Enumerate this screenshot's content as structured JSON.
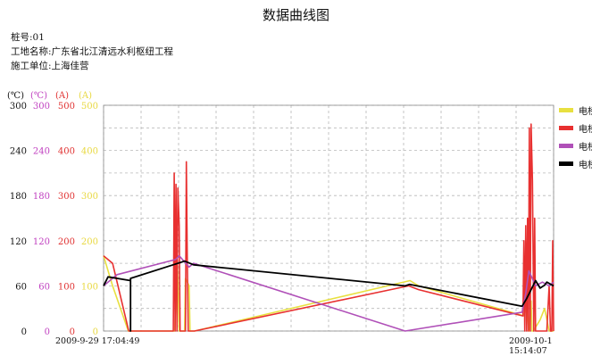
{
  "page_title": "数据曲线图",
  "info": {
    "pile_no": "桩号:01",
    "site_name": "工地名称:广东省北江清远水利枢纽工程",
    "contractor": "施工单位:上海佳营"
  },
  "axes": [
    {
      "unit": "(℃)",
      "color": "#111111",
      "ticks": [
        "300",
        "240",
        "180",
        "120",
        "60",
        "0"
      ]
    },
    {
      "unit": "(℃)",
      "color": "#c040c0",
      "ticks": [
        "300",
        "240",
        "180",
        "120",
        "60",
        "0"
      ]
    },
    {
      "unit": "(A)",
      "color": "#e03030",
      "ticks": [
        "500",
        "400",
        "300",
        "200",
        "100",
        "0"
      ]
    },
    {
      "unit": "(A)",
      "color": "#e8d840",
      "ticks": [
        "500",
        "400",
        "300",
        "200",
        "100",
        "0"
      ]
    }
  ],
  "time_start": "2009-9-29 17:04:49",
  "time_end": "2009-10-1 15:14:07",
  "legend": [
    {
      "label": "电桥",
      "color": "#e8e040"
    },
    {
      "label": "电桥",
      "color": "#e83030"
    },
    {
      "label": "电桥",
      "color": "#b050b8"
    },
    {
      "label": "电桥",
      "color": "#000000"
    }
  ],
  "chart_data": {
    "type": "line",
    "xlabel": "",
    "x_range": [
      "2009-9-29 17:04:49",
      "2009-10-1 15:14:07"
    ],
    "ylim": [
      0,
      300
    ],
    "grid": true,
    "legend_position": "right",
    "series": [
      {
        "color": "#e8e040",
        "x": [
          0,
          0.02,
          0.055,
          0.158,
          0.164,
          0.168,
          0.18,
          0.182,
          0.19,
          0.192,
          0.2,
          0.202,
          0.681,
          0.7,
          0.935,
          0.94,
          0.945,
          0.95,
          0.952,
          0.955,
          0.97,
          0.98,
          0.99,
          0.995,
          1
        ],
        "values": [
          100,
          60,
          0,
          0,
          90,
          0,
          0,
          70,
          60,
          0,
          0,
          0,
          67,
          60,
          20,
          35,
          0,
          40,
          0,
          0,
          15,
          30,
          0,
          0,
          0
        ]
      },
      {
        "color": "#e83030",
        "x": [
          0,
          0.02,
          0.056,
          0.058,
          0.155,
          0.157,
          0.159,
          0.161,
          0.163,
          0.165,
          0.168,
          0.17,
          0.175,
          0.182,
          0.184,
          0.186,
          0.188,
          0.2,
          0.202,
          0.678,
          0.7,
          0.932,
          0.934,
          0.936,
          0.938,
          0.94,
          0.942,
          0.944,
          0.946,
          0.948,
          0.95,
          0.953,
          0.956,
          0.958,
          0.96,
          0.965,
          0.968,
          0.975,
          0.985,
          0.99,
          0.993,
          0.996,
          0.998,
          1
        ],
        "values": [
          100,
          90,
          0,
          0,
          0,
          210,
          0,
          195,
          0,
          190,
          140,
          0,
          0,
          0,
          225,
          100,
          0,
          0,
          0,
          60,
          55,
          20,
          120,
          0,
          140,
          0,
          150,
          0,
          270,
          0,
          275,
          200,
          0,
          150,
          0,
          0,
          0,
          0,
          0,
          60,
          0,
          0,
          120,
          0
        ]
      },
      {
        "color": "#b050b8",
        "x": [
          0,
          0.03,
          0.16,
          0.168,
          0.19,
          0.2,
          0.67,
          0.93,
          0.938,
          0.945,
          0.96,
          0.975,
          0.99,
          1
        ],
        "values": [
          60,
          75,
          95,
          100,
          85,
          90,
          0,
          25,
          50,
          80,
          60,
          65,
          60,
          65
        ]
      },
      {
        "color": "#000000",
        "x": [
          0,
          0.01,
          0.06,
          0.06,
          0.06,
          0.17,
          0.18,
          0.2,
          0.67,
          0.68,
          0.93,
          0.94,
          0.96,
          0.97,
          0.98,
          0.985,
          1
        ],
        "values": [
          60,
          72,
          67,
          0,
          70,
          91,
          93,
          88,
          60,
          62,
          33,
          43,
          67,
          57,
          61,
          65,
          60
        ]
      }
    ]
  }
}
